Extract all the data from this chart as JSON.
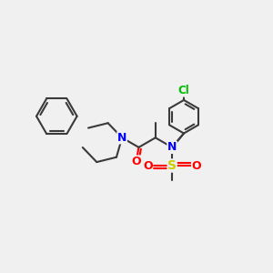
{
  "bg_color": "#f0f0f0",
  "atom_colors": {
    "N": "#0000ff",
    "O": "#ff0000",
    "S": "#cccc00",
    "Cl": "#00bb00",
    "C": "#3a3a3a"
  },
  "bond_color": "#3a3a3a",
  "bond_width": 1.5,
  "figsize": [
    3.0,
    3.0
  ],
  "dpi": 100
}
